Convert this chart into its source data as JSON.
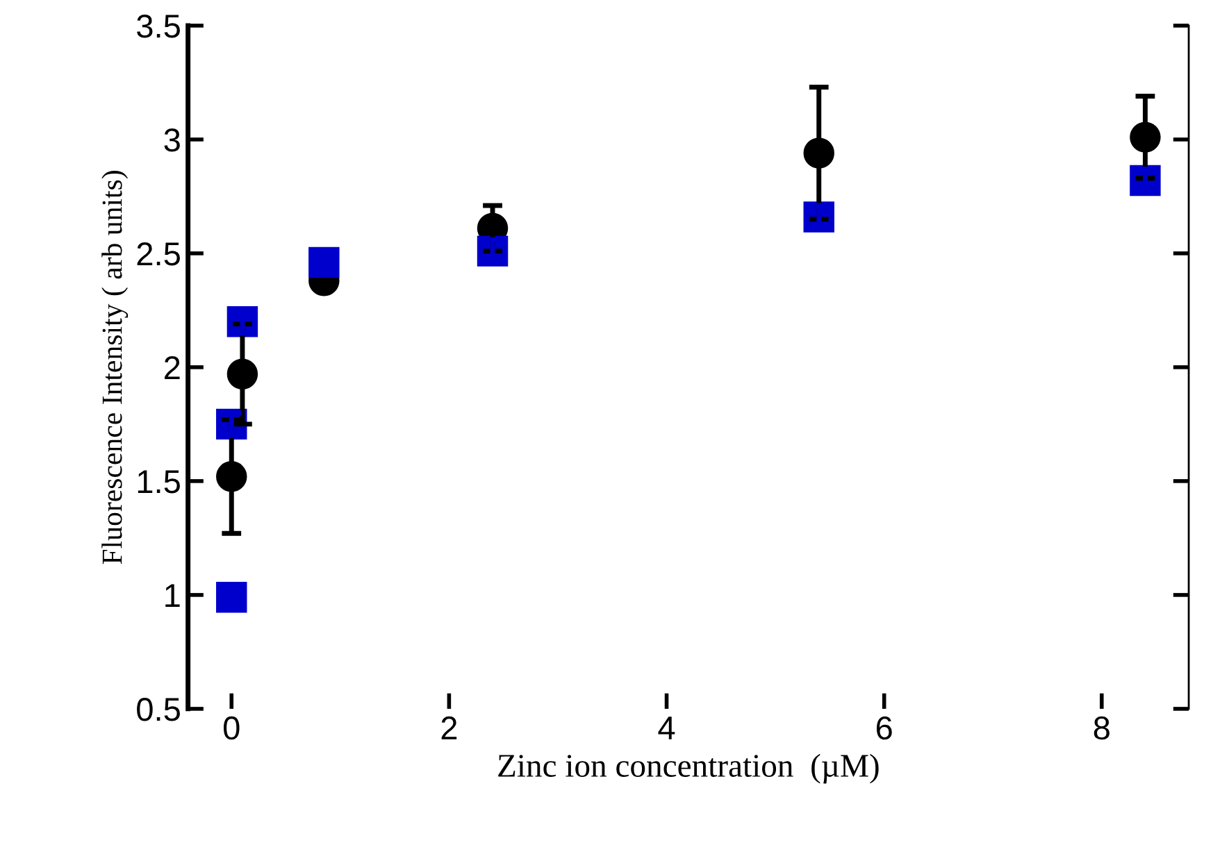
{
  "chart_data": {
    "type": "scatter",
    "xlabel": "Zinc ion concentration  (µM)",
    "ylabel": "Fluorescence Intensity ( arb units)",
    "xlim": [
      -0.4,
      8.8
    ],
    "xticks": [
      0,
      2,
      4,
      6,
      8
    ],
    "ylim": [
      0.5,
      3.5
    ],
    "yticks": [
      0.5,
      1,
      1.5,
      2,
      2.5,
      3,
      3.5
    ],
    "grid": false,
    "legend": false,
    "series": [
      {
        "color": "#000000",
        "marker": "circle",
        "x": [
          0,
          0.1,
          0.85,
          2.4,
          5.4,
          8.4
        ],
        "values": [
          1.52,
          1.97,
          2.38,
          2.61,
          2.94,
          3.01
        ],
        "errors": [
          0.25,
          0.22,
          null,
          0.1,
          0.29,
          0.18
        ]
      },
      {
        "color": "#0000cc",
        "marker": "square",
        "x": [
          0,
          0,
          0.1,
          0.85,
          2.4,
          5.4,
          8.4
        ],
        "values": [
          0.99,
          1.75,
          2.2,
          2.46,
          2.51,
          2.66,
          2.82
        ],
        "errors": [
          0.05,
          0.05,
          0.05,
          0.05,
          0.05,
          0.05,
          0.05
        ]
      }
    ]
  }
}
